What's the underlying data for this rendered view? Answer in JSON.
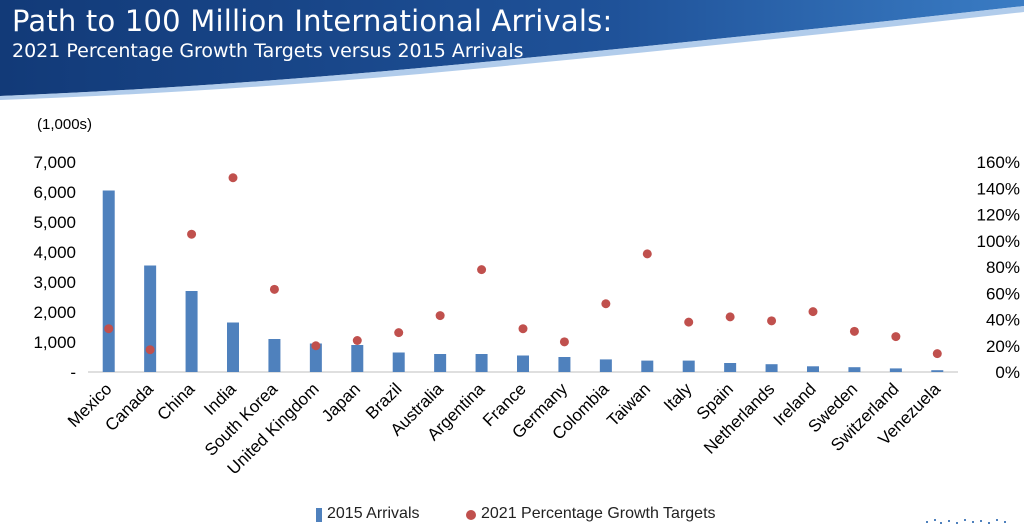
{
  "header": {
    "title": "Path to 100 Million International Arrivals:",
    "subtitle": "2021 Percentage Growth Targets versus 2015 Arrivals"
  },
  "colors": {
    "banner_dark": "#123a78",
    "banner_light": "#2f6fb6",
    "bar": "#4f81bd",
    "dot": "#c0504d"
  },
  "chart_data": {
    "type": "bar",
    "units_label": "(1,000s)",
    "categories": [
      "Mexico",
      "Canada",
      "China",
      "India",
      "South Korea",
      "United Kingdom",
      "Japan",
      "Brazil",
      "Australia",
      "Argentina",
      "France",
      "Germany",
      "Colombia",
      "Taiwan",
      "Italy",
      "Spain",
      "Netherlands",
      "Ireland",
      "Sweden",
      "Switzerland",
      "Venezuela"
    ],
    "series": [
      {
        "name": "2015 Arrivals",
        "kind": "bar",
        "axis": "left",
        "values": [
          6050,
          3550,
          2700,
          1650,
          1100,
          950,
          900,
          650,
          600,
          600,
          550,
          500,
          420,
          380,
          380,
          300,
          260,
          190,
          160,
          120,
          60
        ]
      },
      {
        "name": "2021 Percentage Growth Targets",
        "kind": "dot",
        "axis": "right",
        "values": [
          33,
          17,
          105,
          148,
          63,
          20,
          24,
          30,
          43,
          78,
          33,
          23,
          52,
          90,
          38,
          42,
          39,
          46,
          31,
          27,
          14
        ]
      }
    ],
    "y_left": {
      "min": 0,
      "max": 7000,
      "ticks": [
        "-",
        "1,000",
        "2,000",
        "3,000",
        "4,000",
        "5,000",
        "6,000",
        "7,000"
      ]
    },
    "y_right": {
      "min": 0,
      "max": 160,
      "ticks": [
        "0%",
        "20%",
        "40%",
        "60%",
        "80%",
        "100%",
        "120%",
        "140%",
        "160%"
      ]
    },
    "legend_position": "bottom-center"
  }
}
